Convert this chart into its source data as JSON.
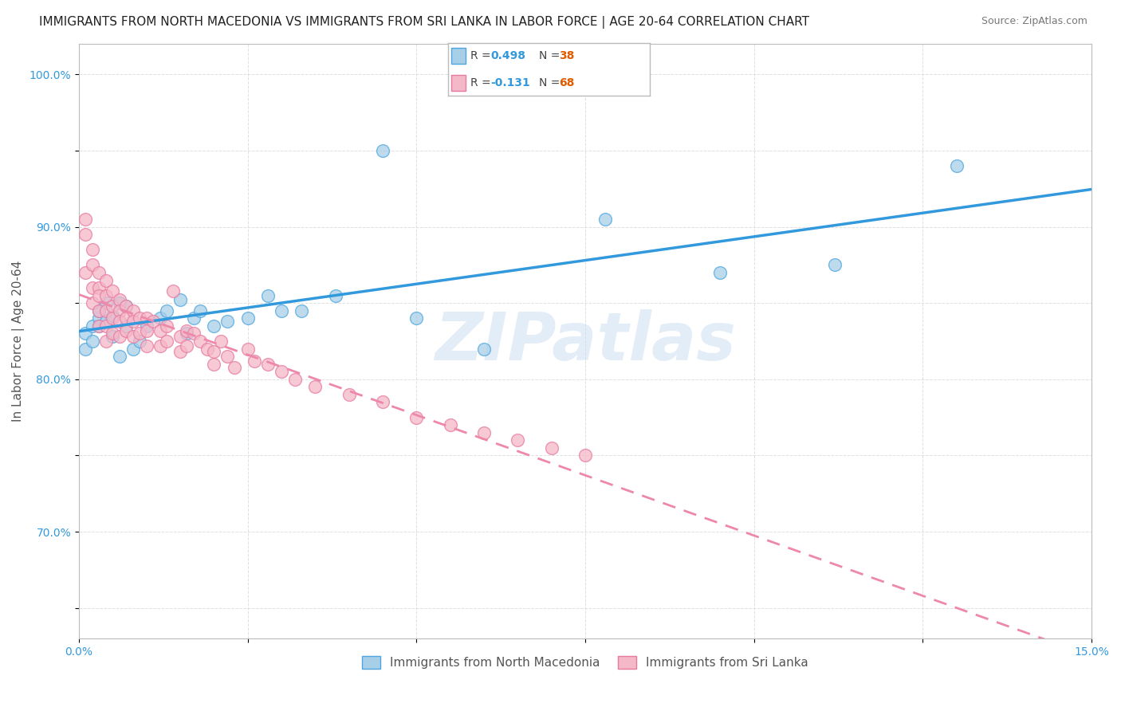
{
  "title": "IMMIGRANTS FROM NORTH MACEDONIA VS IMMIGRANTS FROM SRI LANKA IN LABOR FORCE | AGE 20-64 CORRELATION CHART",
  "source": "Source: ZipAtlas.com",
  "ylabel": "In Labor Force | Age 20-64",
  "xlim": [
    0.0,
    0.15
  ],
  "ylim": [
    0.63,
    1.02
  ],
  "xticks": [
    0.0,
    0.025,
    0.05,
    0.075,
    0.1,
    0.125,
    0.15
  ],
  "xticklabels": [
    "0.0%",
    "",
    "",
    "",
    "",
    "",
    "15.0%"
  ],
  "yticks": [
    0.65,
    0.7,
    0.75,
    0.8,
    0.85,
    0.9,
    0.95,
    1.0
  ],
  "yticklabels": [
    "",
    "70.0%",
    "",
    "80.0%",
    "",
    "90.0%",
    "",
    "100.0%"
  ],
  "blue_fill": "#a8cfe8",
  "blue_edge": "#4da6e0",
  "pink_fill": "#f4b8c8",
  "pink_edge": "#e87aa0",
  "blue_line": "#3399dd",
  "pink_line": "#ee88aa",
  "R_blue_str": "0.498",
  "N_blue_str": "38",
  "R_pink_str": "-0.131",
  "N_pink_str": "68",
  "r_color": "#3399dd",
  "n_color": "#e05c00",
  "watermark_text": "ZIPatlas",
  "watermark_color": "#c8ddf0",
  "watermark_alpha": 0.5,
  "background_color": "#ffffff",
  "grid_color": "#d8d8d8",
  "title_color": "#222222",
  "source_color": "#777777",
  "ylabel_color": "#555555",
  "tick_color": "#3399dd",
  "legend_label_blue": "Immigrants from North Macedonia",
  "legend_label_pink": "Immigrants from Sri Lanka",
  "blue_scatter_x": [
    0.001,
    0.001,
    0.002,
    0.002,
    0.003,
    0.003,
    0.003,
    0.004,
    0.004,
    0.005,
    0.005,
    0.006,
    0.006,
    0.007,
    0.007,
    0.008,
    0.009,
    0.01,
    0.012,
    0.013,
    0.015,
    0.016,
    0.017,
    0.018,
    0.02,
    0.022,
    0.025,
    0.028,
    0.03,
    0.033,
    0.038,
    0.045,
    0.05,
    0.06,
    0.078,
    0.095,
    0.112,
    0.13
  ],
  "blue_scatter_y": [
    0.82,
    0.83,
    0.835,
    0.825,
    0.84,
    0.835,
    0.845,
    0.838,
    0.85,
    0.842,
    0.828,
    0.85,
    0.815,
    0.848,
    0.835,
    0.82,
    0.825,
    0.835,
    0.84,
    0.845,
    0.852,
    0.83,
    0.84,
    0.845,
    0.835,
    0.838,
    0.84,
    0.855,
    0.845,
    0.845,
    0.855,
    0.95,
    0.84,
    0.82,
    0.905,
    0.87,
    0.875,
    0.94
  ],
  "pink_scatter_x": [
    0.001,
    0.001,
    0.001,
    0.002,
    0.002,
    0.002,
    0.002,
    0.003,
    0.003,
    0.003,
    0.003,
    0.003,
    0.004,
    0.004,
    0.004,
    0.004,
    0.004,
    0.005,
    0.005,
    0.005,
    0.005,
    0.006,
    0.006,
    0.006,
    0.006,
    0.007,
    0.007,
    0.007,
    0.008,
    0.008,
    0.008,
    0.009,
    0.009,
    0.01,
    0.01,
    0.01,
    0.011,
    0.012,
    0.012,
    0.013,
    0.013,
    0.014,
    0.015,
    0.015,
    0.016,
    0.016,
    0.017,
    0.018,
    0.019,
    0.02,
    0.02,
    0.021,
    0.022,
    0.023,
    0.025,
    0.026,
    0.028,
    0.03,
    0.032,
    0.035,
    0.04,
    0.045,
    0.05,
    0.055,
    0.06,
    0.065,
    0.07,
    0.075
  ],
  "pink_scatter_y": [
    0.905,
    0.895,
    0.87,
    0.885,
    0.875,
    0.86,
    0.85,
    0.87,
    0.86,
    0.855,
    0.845,
    0.835,
    0.865,
    0.855,
    0.845,
    0.835,
    0.825,
    0.858,
    0.848,
    0.84,
    0.83,
    0.852,
    0.845,
    0.838,
    0.828,
    0.848,
    0.84,
    0.832,
    0.845,
    0.838,
    0.828,
    0.84,
    0.83,
    0.84,
    0.832,
    0.822,
    0.838,
    0.832,
    0.822,
    0.835,
    0.825,
    0.858,
    0.828,
    0.818,
    0.832,
    0.822,
    0.83,
    0.825,
    0.82,
    0.818,
    0.81,
    0.825,
    0.815,
    0.808,
    0.82,
    0.812,
    0.81,
    0.805,
    0.8,
    0.795,
    0.79,
    0.785,
    0.775,
    0.77,
    0.765,
    0.76,
    0.755,
    0.75
  ],
  "title_fontsize": 11,
  "source_fontsize": 9,
  "axis_label_fontsize": 11,
  "tick_fontsize": 10,
  "legend_fontsize": 11
}
